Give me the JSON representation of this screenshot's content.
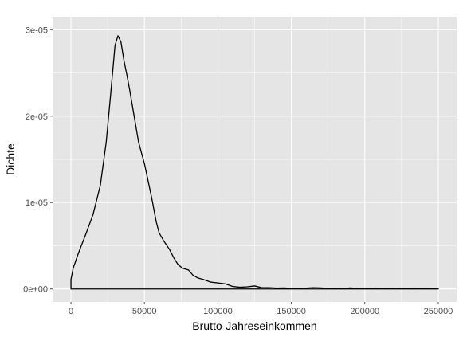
{
  "chart_data": {
    "type": "area",
    "title": "",
    "xlabel": "Brutto-Jahreseinkommen",
    "ylabel": "Dichte",
    "xlim": [
      -12500,
      262500
    ],
    "ylim": [
      -1.5e-06,
      3.15e-05
    ],
    "x_ticks": [
      0,
      50000,
      100000,
      150000,
      200000,
      250000
    ],
    "x_tick_labels": [
      "0",
      "50000",
      "100000",
      "150000",
      "200000",
      "250000"
    ],
    "y_ticks": [
      0,
      1e-05,
      2e-05,
      3e-05
    ],
    "y_tick_labels": [
      "0e+00",
      "1e-05",
      "2e-05",
      "3e-05"
    ],
    "grid": true,
    "legend": "none",
    "colors": {
      "panel": "#e5e5e5",
      "grid": "#ffffff",
      "line": "#000000",
      "ticks": "#4d4d4d"
    },
    "series": [
      {
        "x": [
          0,
          1500,
          5000,
          10000,
          15000,
          20000,
          24000,
          27000,
          30000,
          32000,
          34000,
          36000,
          38000,
          40000,
          43000,
          46000,
          50000,
          55000,
          58000,
          60000,
          63000,
          67000,
          70000,
          73000,
          76000,
          80000,
          83000,
          86000,
          90000,
          95000,
          100000,
          105000,
          110000,
          115000,
          120000,
          125000,
          130000,
          135000,
          140000,
          145000,
          150000,
          155000,
          160000,
          165000,
          170000,
          175000,
          180000,
          185000,
          190000,
          195000,
          200000,
          205000,
          210000,
          215000,
          220000,
          225000,
          230000,
          240000,
          250000
        ],
        "y": [
          1.1e-06,
          2.4e-06,
          4.1e-06,
          6.3e-06,
          8.6e-06,
          1.2e-05,
          1.7e-05,
          2.25e-05,
          2.82e-05,
          2.93e-05,
          2.86e-05,
          2.65e-05,
          2.48e-05,
          2.3e-05,
          2e-05,
          1.7e-05,
          1.45e-05,
          1.05e-05,
          7.8e-06,
          6.5e-06,
          5.6e-06,
          4.6e-06,
          3.6e-06,
          2.8e-06,
          2.4e-06,
          2.2e-06,
          1.6e-06,
          1.3e-06,
          1.1e-06,
          8e-07,
          7e-07,
          6e-07,
          3e-07,
          2e-07,
          2.5e-07,
          3.5e-07,
          1.5e-07,
          1.5e-07,
          1e-07,
          1.2e-07,
          6e-08,
          6e-08,
          1e-07,
          1.5e-07,
          1.2e-07,
          6e-08,
          6e-08,
          4e-08,
          1.2e-07,
          6e-08,
          4e-08,
          3e-08,
          6e-08,
          8e-08,
          5e-08,
          2e-08,
          2e-08,
          5e-08,
          5e-08
        ]
      }
    ]
  }
}
